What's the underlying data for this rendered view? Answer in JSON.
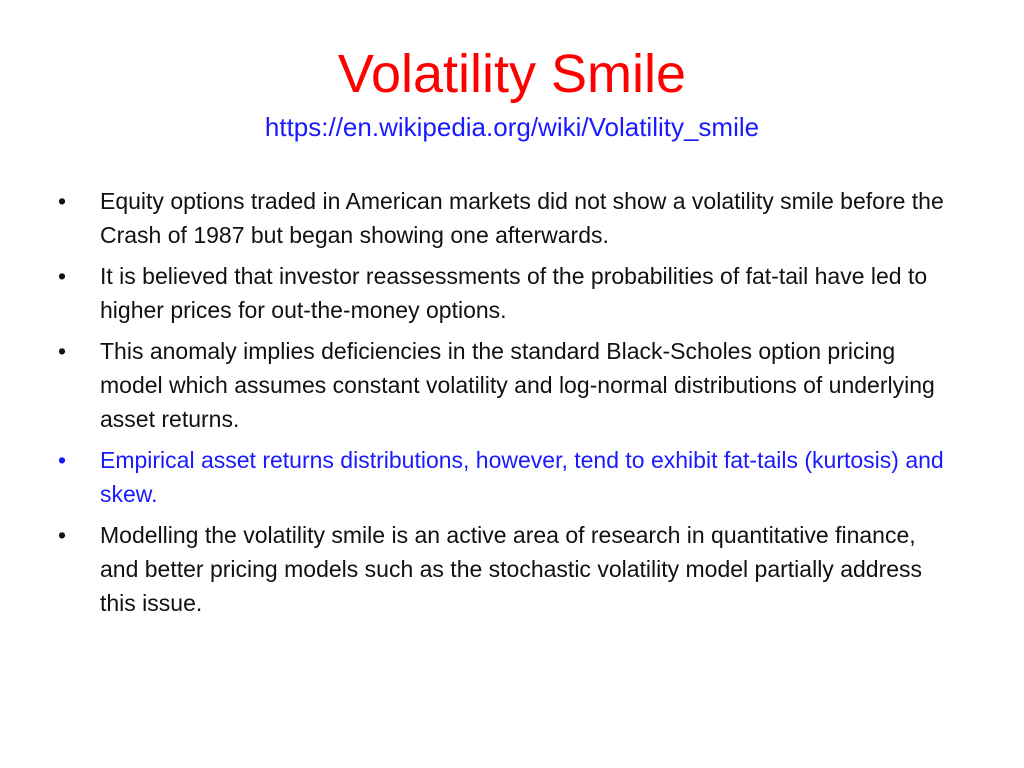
{
  "slide": {
    "title": "Volatility Smile",
    "subtitle": "https://en.wikipedia.org/wiki/Volatility_smile",
    "bullet_glyph": "•",
    "bullets": [
      {
        "text": "Equity options traded in American markets did not show a volatility smile before the Crash of 1987 but began showing one afterwards."
      },
      {
        "text": "It is believed that investor reassessments of the probabilities of fat-tail have led to higher prices for out-the-money options."
      },
      {
        "text": "This anomaly implies deficiencies in the standard Black-Scholes option pricing model which assumes constant volatility and log-normal distributions of underlying asset returns."
      },
      {
        "text": "Empirical asset returns distributions, however, tend to exhibit fat-tails (kurtosis) and skew."
      },
      {
        "text": "Modelling the volatility smile is an active area of research in quantitative finance, and better pricing models such as the stochastic volatility model partially address this issue."
      }
    ]
  },
  "colors": {
    "title": "#ff0000",
    "link": "#1a1aff",
    "highlight_bullet": "#1a1aff",
    "body_text": "#111111"
  }
}
